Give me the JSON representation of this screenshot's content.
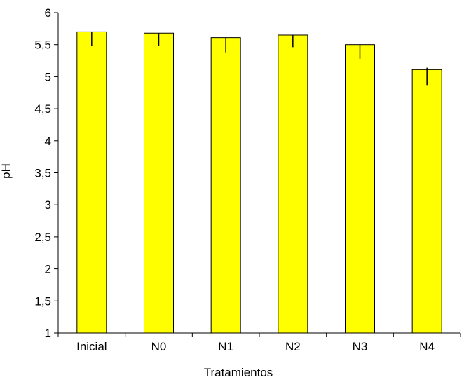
{
  "chart_data": {
    "type": "bar",
    "categories": [
      "Inicial",
      "N0",
      "N1",
      "N2",
      "N3",
      "N4"
    ],
    "values": [
      5.7,
      5.68,
      5.61,
      5.65,
      5.5,
      5.11
    ],
    "error_low": [
      0.22,
      0.2,
      0.23,
      0.19,
      0.22,
      0.24
    ],
    "error_high": [
      0.0,
      0.0,
      0.0,
      0.0,
      0.0,
      0.03
    ],
    "xlabel": "Tratamientos",
    "ylabel": "pH",
    "ylim": [
      1,
      6
    ],
    "yticks": [
      1,
      1.5,
      2,
      2.5,
      3,
      3.5,
      4,
      4.5,
      5,
      5.5,
      6
    ],
    "ytick_labels": [
      "1",
      "1,5",
      "2",
      "2,5",
      "3",
      "3,5",
      "4",
      "4,5",
      "5",
      "5,5",
      "6"
    ],
    "grid": false,
    "legend": "none",
    "colors": {
      "bar_fill": "#ffff00",
      "bar_stroke": "#000000",
      "axis": "#000000"
    }
  }
}
